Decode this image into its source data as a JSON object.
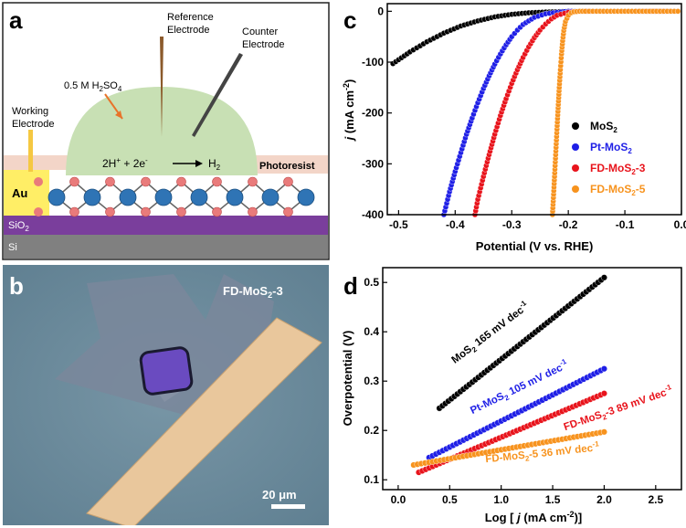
{
  "panels": {
    "a": {
      "letter": "a",
      "labels": {
        "reference": [
          "Reference",
          "Electrode"
        ],
        "counter": [
          "Counter",
          "Electrode"
        ],
        "working": [
          "Working",
          "Electrode"
        ],
        "electrolyte": "0.5 M H",
        "electrolyte_sub": "2",
        "electrolyte_tail": "SO",
        "electrolyte_sub2": "4",
        "reaction_left": "2H",
        "reaction_sup1": "+",
        "reaction_mid": " + 2e",
        "reaction_sup2": "-",
        "reaction_product": "H",
        "reaction_product_sub": "2",
        "photoresist": "Photoresist",
        "au": "Au",
        "sio2_main": "SiO",
        "sio2_sub": "2",
        "si": "Si"
      },
      "colors": {
        "droplet": "#c8e0b4",
        "photoresist": "#f3d5c8",
        "au": "#ffee66",
        "sio2": "#7a3e9c",
        "si": "#808080",
        "mo": "#2f74b5",
        "s": "#e97b7b",
        "reference_electrode": "#8b5a2b",
        "counter_electrode": "#444444",
        "arrow": "#e8732a"
      }
    },
    "b": {
      "letter": "b",
      "label_main": "FD-MoS",
      "label_sub": "2",
      "label_tail": "-3",
      "scalebar": "20 μm",
      "colors": {
        "background": "#6f8fa0",
        "flake": "#7e8a9e",
        "electrode": "#e9c79c",
        "hole": "#6a4bc0"
      }
    },
    "c": {
      "letter": "c",
      "chart_data": {
        "type": "scatter",
        "xlabel": "Potential (V vs. RHE)",
        "ylabel": "j (mA cm-2)",
        "xlim": [
          -0.52,
          0.0
        ],
        "ylim": [
          -400,
          15
        ],
        "xticks": [
          -0.5,
          -0.4,
          -0.3,
          -0.2,
          -0.1,
          0.0
        ],
        "yticks": [
          0,
          -100,
          -200,
          -300,
          -400
        ],
        "legend_position": "right",
        "series": [
          {
            "name": "MoS2",
            "name_main": "MoS",
            "name_sub": "2",
            "name_tail": "",
            "color": "#000000",
            "label_color": "#000000",
            "x": [
              -0.51,
              -0.48,
              -0.45,
              -0.42,
              -0.39,
              -0.36,
              -0.33,
              -0.3,
              -0.27,
              -0.24,
              -0.21,
              -0.18,
              -0.15,
              -0.1,
              -0.05,
              0.0
            ],
            "y": [
              -103,
              -80,
              -60,
              -43,
              -29,
              -19,
              -11,
              -6,
              -3,
              -1.5,
              -0.5,
              0,
              0,
              0,
              0,
              0
            ]
          },
          {
            "name": "Pt-MoS2",
            "name_main": "Pt-MoS",
            "name_sub": "2",
            "name_tail": "",
            "color": "#1f1fe6",
            "label_color": "#1f1fe6",
            "x": [
              -0.42,
              -0.41,
              -0.4,
              -0.39,
              -0.38,
              -0.37,
              -0.36,
              -0.35,
              -0.34,
              -0.33,
              -0.32,
              -0.31,
              -0.3,
              -0.29,
              -0.28,
              -0.26,
              -0.24,
              -0.22,
              -0.2,
              -0.17,
              -0.1,
              0.0
            ],
            "y": [
              -400,
              -355,
              -315,
              -278,
              -242,
              -210,
              -180,
              -152,
              -127,
              -104,
              -84,
              -66,
              -50,
              -37,
              -26,
              -12,
              -5,
              -2,
              0,
              0,
              0,
              0
            ]
          },
          {
            "name": "FD-MoS2-3",
            "name_main": "FD-MoS",
            "name_sub": "2",
            "name_tail": "-3",
            "color": "#e8141c",
            "label_color": "#e8141c",
            "x": [
              -0.365,
              -0.36,
              -0.35,
              -0.34,
              -0.33,
              -0.32,
              -0.31,
              -0.3,
              -0.29,
              -0.28,
              -0.27,
              -0.26,
              -0.25,
              -0.24,
              -0.23,
              -0.22,
              -0.2,
              -0.18,
              -0.15,
              -0.1,
              0.0
            ],
            "y": [
              -400,
              -370,
              -325,
              -282,
              -242,
              -205,
              -172,
              -142,
              -115,
              -91,
              -70,
              -52,
              -37,
              -25,
              -15,
              -8,
              -2,
              0,
              0,
              0,
              0
            ]
          },
          {
            "name": "FD-MoS2-5",
            "name_main": "FD-MoS",
            "name_sub": "2",
            "name_tail": "-5",
            "color": "#f7931e",
            "label_color": "#f7931e",
            "x": [
              -0.228,
              -0.226,
              -0.224,
              -0.222,
              -0.22,
              -0.218,
              -0.216,
              -0.214,
              -0.212,
              -0.21,
              -0.208,
              -0.205,
              -0.2,
              -0.195,
              -0.19,
              -0.18,
              -0.17,
              -0.15,
              -0.1,
              -0.05,
              0.0
            ],
            "y": [
              -400,
              -360,
              -318,
              -275,
              -232,
              -190,
              -150,
              -115,
              -84,
              -58,
              -38,
              -20,
              -8,
              -3,
              -1,
              0,
              0,
              0,
              0,
              0,
              0
            ]
          }
        ]
      }
    },
    "d": {
      "letter": "d",
      "chart_data": {
        "type": "scatter",
        "xlabel": "Log [ j (mA cm-2)]",
        "ylabel": "Overpotential (V)",
        "xlim": [
          -0.15,
          2.75
        ],
        "ylim": [
          0.08,
          0.53
        ],
        "xticks": [
          0.0,
          0.5,
          1.0,
          1.5,
          2.0,
          2.5
        ],
        "yticks": [
          0.1,
          0.2,
          0.3,
          0.4,
          0.5
        ],
        "series": [
          {
            "name": "MoS2",
            "color": "#000000",
            "x_start": 0.4,
            "x_end": 2.0,
            "y_start": 0.245,
            "y_end": 0.51,
            "annotation": {
              "main": "MoS",
              "sub": "2",
              "tail": " 165 mV dec",
              "sup": "-1",
              "x": 0.55,
              "y": 0.335,
              "angle": -37,
              "color": "#000000"
            }
          },
          {
            "name": "Pt-MoS2",
            "color": "#1f1fe6",
            "x_start": 0.3,
            "x_end": 2.0,
            "y_start": 0.145,
            "y_end": 0.325,
            "annotation": {
              "main": "Pt-MoS",
              "sub": "2",
              "tail": " 105 mV dec",
              "sup": "-1",
              "x": 0.72,
              "y": 0.233,
              "angle": -26,
              "color": "#1f1fe6"
            }
          },
          {
            "name": "FD-MoS2-3",
            "color": "#e8141c",
            "x_start": 0.2,
            "x_end": 2.0,
            "y_start": 0.115,
            "y_end": 0.275,
            "annotation": {
              "main": "FD-MoS",
              "sub": "2",
              "tail": "-3 89 mV dec",
              "sup": "-1",
              "x": 1.62,
              "y": 0.2,
              "angle": -19,
              "color": "#e8141c"
            }
          },
          {
            "name": "FD-MoS2-5",
            "color": "#f7931e",
            "x_start": 0.15,
            "x_end": 2.0,
            "y_start": 0.13,
            "y_end": 0.197,
            "annotation": {
              "main": "FD-MoS",
              "sub": "2",
              "tail": "-5 36 mV dec",
              "sup": "-1",
              "x": 0.85,
              "y": 0.135,
              "angle": -6,
              "color": "#f7931e"
            }
          }
        ]
      }
    }
  }
}
